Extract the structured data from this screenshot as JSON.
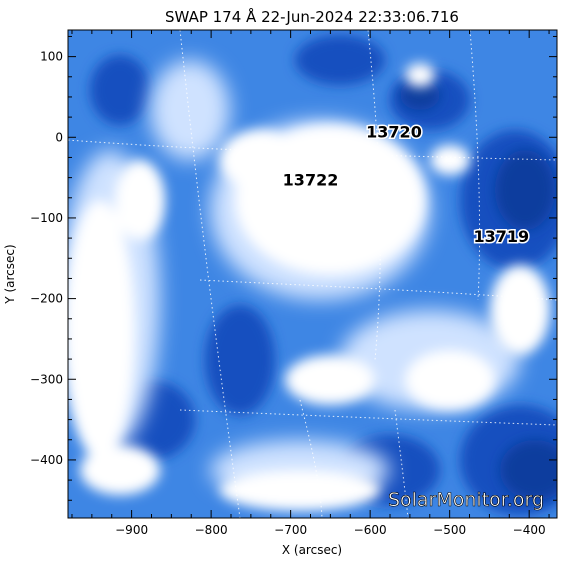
{
  "title": "SWAP 174 Å 22-Jun-2024 22:33:06.716",
  "xlabel": "X (arcsec)",
  "ylabel": "Y (arcsec)",
  "x_ticks": [
    "−900",
    "−800",
    "−700",
    "−600",
    "−500",
    "−400"
  ],
  "y_ticks": [
    "100",
    "0",
    "−100",
    "−200",
    "−300",
    "−400"
  ],
  "x_tick_values": [
    -900,
    -800,
    -700,
    -600,
    -500,
    -400
  ],
  "y_tick_values": [
    100,
    0,
    -100,
    -200,
    -300,
    -400
  ],
  "x_range": [
    -980,
    -365
  ],
  "y_range": [
    -472,
    133
  ],
  "regions": [
    {
      "label": "13720",
      "x": -570,
      "y": 0
    },
    {
      "label": "13722",
      "x": -675,
      "y": -60
    },
    {
      "label": "13719",
      "x": -435,
      "y": -130
    }
  ],
  "watermark": "SolarMonitor.org",
  "colors": {
    "deep": "#0a3a9a",
    "mid": "#2f7fe0",
    "light": "#cfe2ff",
    "white": "#ffffff",
    "frame": "#000000"
  }
}
